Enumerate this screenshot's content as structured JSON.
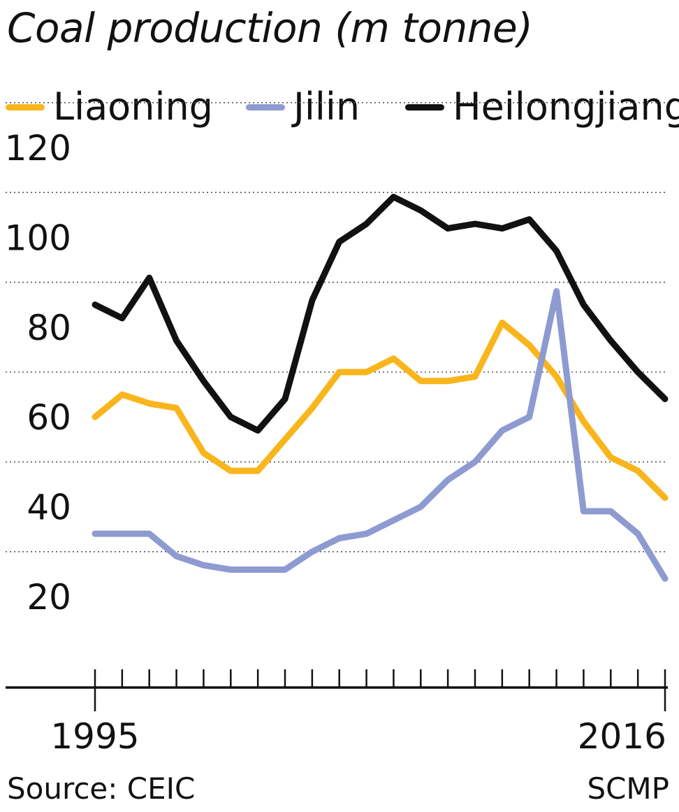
{
  "chart_data": {
    "type": "line",
    "title": "Coal production (m tonne)",
    "x": [
      1995,
      1996,
      1997,
      1998,
      1999,
      2000,
      2001,
      2002,
      2003,
      2004,
      2005,
      2006,
      2007,
      2008,
      2009,
      2010,
      2011,
      2012,
      2013,
      2014,
      2015,
      2016
    ],
    "series": [
      {
        "name": "Liaoning",
        "color": "#f9b51c",
        "values": [
          60,
          65,
          63,
          62,
          52,
          48,
          48,
          55,
          62,
          70,
          70,
          73,
          68,
          68,
          69,
          81,
          76,
          69,
          59,
          51,
          48,
          42
        ]
      },
      {
        "name": "Jilin",
        "color": "#8e9bd1",
        "values": [
          34,
          34,
          34,
          29,
          27,
          26,
          26,
          26,
          30,
          33,
          34,
          37,
          40,
          46,
          50,
          57,
          60,
          88,
          39,
          39,
          34,
          24
        ]
      },
      {
        "name": "Heilongjiang",
        "color": "#111111",
        "values": [
          85,
          82,
          91,
          77,
          68,
          60,
          57,
          64,
          86,
          99,
          103,
          109,
          106,
          102,
          103,
          102,
          104,
          97,
          85,
          77,
          70,
          64
        ]
      }
    ],
    "xlabel": "",
    "ylabel": "",
    "y_ticks": [
      20,
      40,
      60,
      80,
      100,
      120
    ],
    "x_tick_labels": [
      "1995",
      "2016"
    ],
    "ylim": [
      15,
      125
    ],
    "grid": true,
    "legend": "top"
  },
  "notes": {
    "source": "Source: CEIC",
    "credit": "SCMP"
  }
}
